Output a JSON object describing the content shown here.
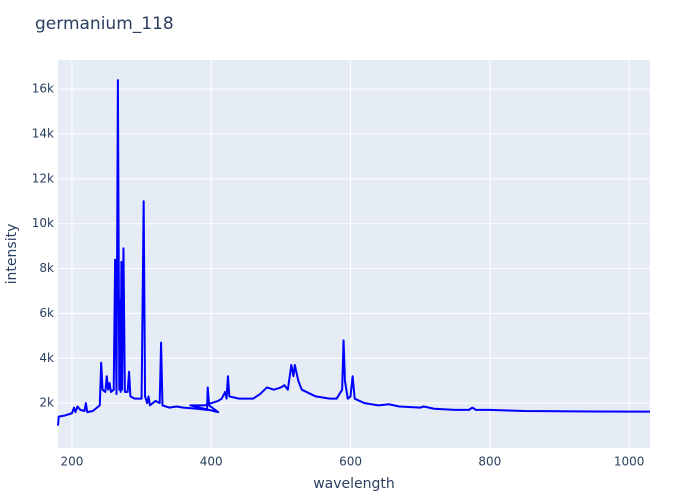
{
  "chart_data": {
    "type": "line",
    "title": "germanium_118",
    "xlabel": "wavelength",
    "ylabel": "intensity",
    "x": [
      180,
      181,
      190,
      200,
      203,
      205,
      208,
      212,
      218,
      220,
      222,
      230,
      240,
      242,
      244,
      248,
      250,
      252,
      254,
      256,
      260,
      262,
      264,
      266,
      268,
      269,
      270,
      271,
      272,
      274,
      276,
      280,
      282,
      284,
      290,
      300,
      303,
      305,
      308,
      310,
      312,
      320,
      326,
      328,
      330,
      340,
      350,
      360,
      380,
      394,
      395,
      397,
      410,
      370,
      390,
      400,
      410,
      415,
      420,
      422,
      424,
      426,
      440,
      460,
      470,
      480,
      490,
      500,
      505,
      510,
      515,
      518,
      520,
      525,
      530,
      550,
      570,
      580,
      588,
      590,
      592,
      596,
      600,
      603,
      606,
      620,
      640,
      655,
      670,
      700,
      705,
      720,
      750,
      770,
      775,
      780,
      800,
      820,
      850,
      900,
      950,
      1030
    ],
    "series": [
      {
        "name": "germanium_118",
        "color": "#0000ff",
        "values": [
          1000,
          1400,
          1450,
          1550,
          1800,
          1600,
          1850,
          1700,
          1650,
          2000,
          1600,
          1650,
          1900,
          3800,
          2600,
          2500,
          3200,
          2600,
          2900,
          2500,
          2600,
          8400,
          2400,
          16400,
          2600,
          6600,
          2500,
          8300,
          2600,
          8900,
          2500,
          2500,
          3400,
          2300,
          2200,
          2200,
          11000,
          2300,
          2000,
          2300,
          1900,
          2100,
          2000,
          4700,
          1900,
          1800,
          1850,
          1800,
          1750,
          1700,
          2700,
          1900,
          1600,
          1900,
          1900,
          2000,
          2100,
          2200,
          2500,
          2200,
          3200,
          2300,
          2200,
          2200,
          2400,
          2700,
          2600,
          2700,
          2800,
          2600,
          3700,
          3200,
          3700,
          3000,
          2600,
          2300,
          2200,
          2200,
          2600,
          4800,
          3000,
          2200,
          2300,
          3200,
          2200,
          2000,
          1900,
          1950,
          1850,
          1800,
          1850,
          1750,
          1700,
          1700,
          1800,
          1700,
          1700,
          1680,
          1650,
          1640,
          1630,
          1620
        ]
      }
    ],
    "xlim": [
      180,
      1030
    ],
    "xticks": [
      200,
      400,
      600,
      800,
      1000
    ],
    "ylim": [
      0,
      17300
    ],
    "yticks": [
      {
        "value": 2000,
        "label": "2k"
      },
      {
        "value": 4000,
        "label": "4k"
      },
      {
        "value": 6000,
        "label": "6k"
      },
      {
        "value": 8000,
        "label": "8k"
      },
      {
        "value": 10000,
        "label": "10k"
      },
      {
        "value": 12000,
        "label": "12k"
      },
      {
        "value": 14000,
        "label": "14k"
      },
      {
        "value": 16000,
        "label": "16k"
      }
    ],
    "grid": true
  }
}
